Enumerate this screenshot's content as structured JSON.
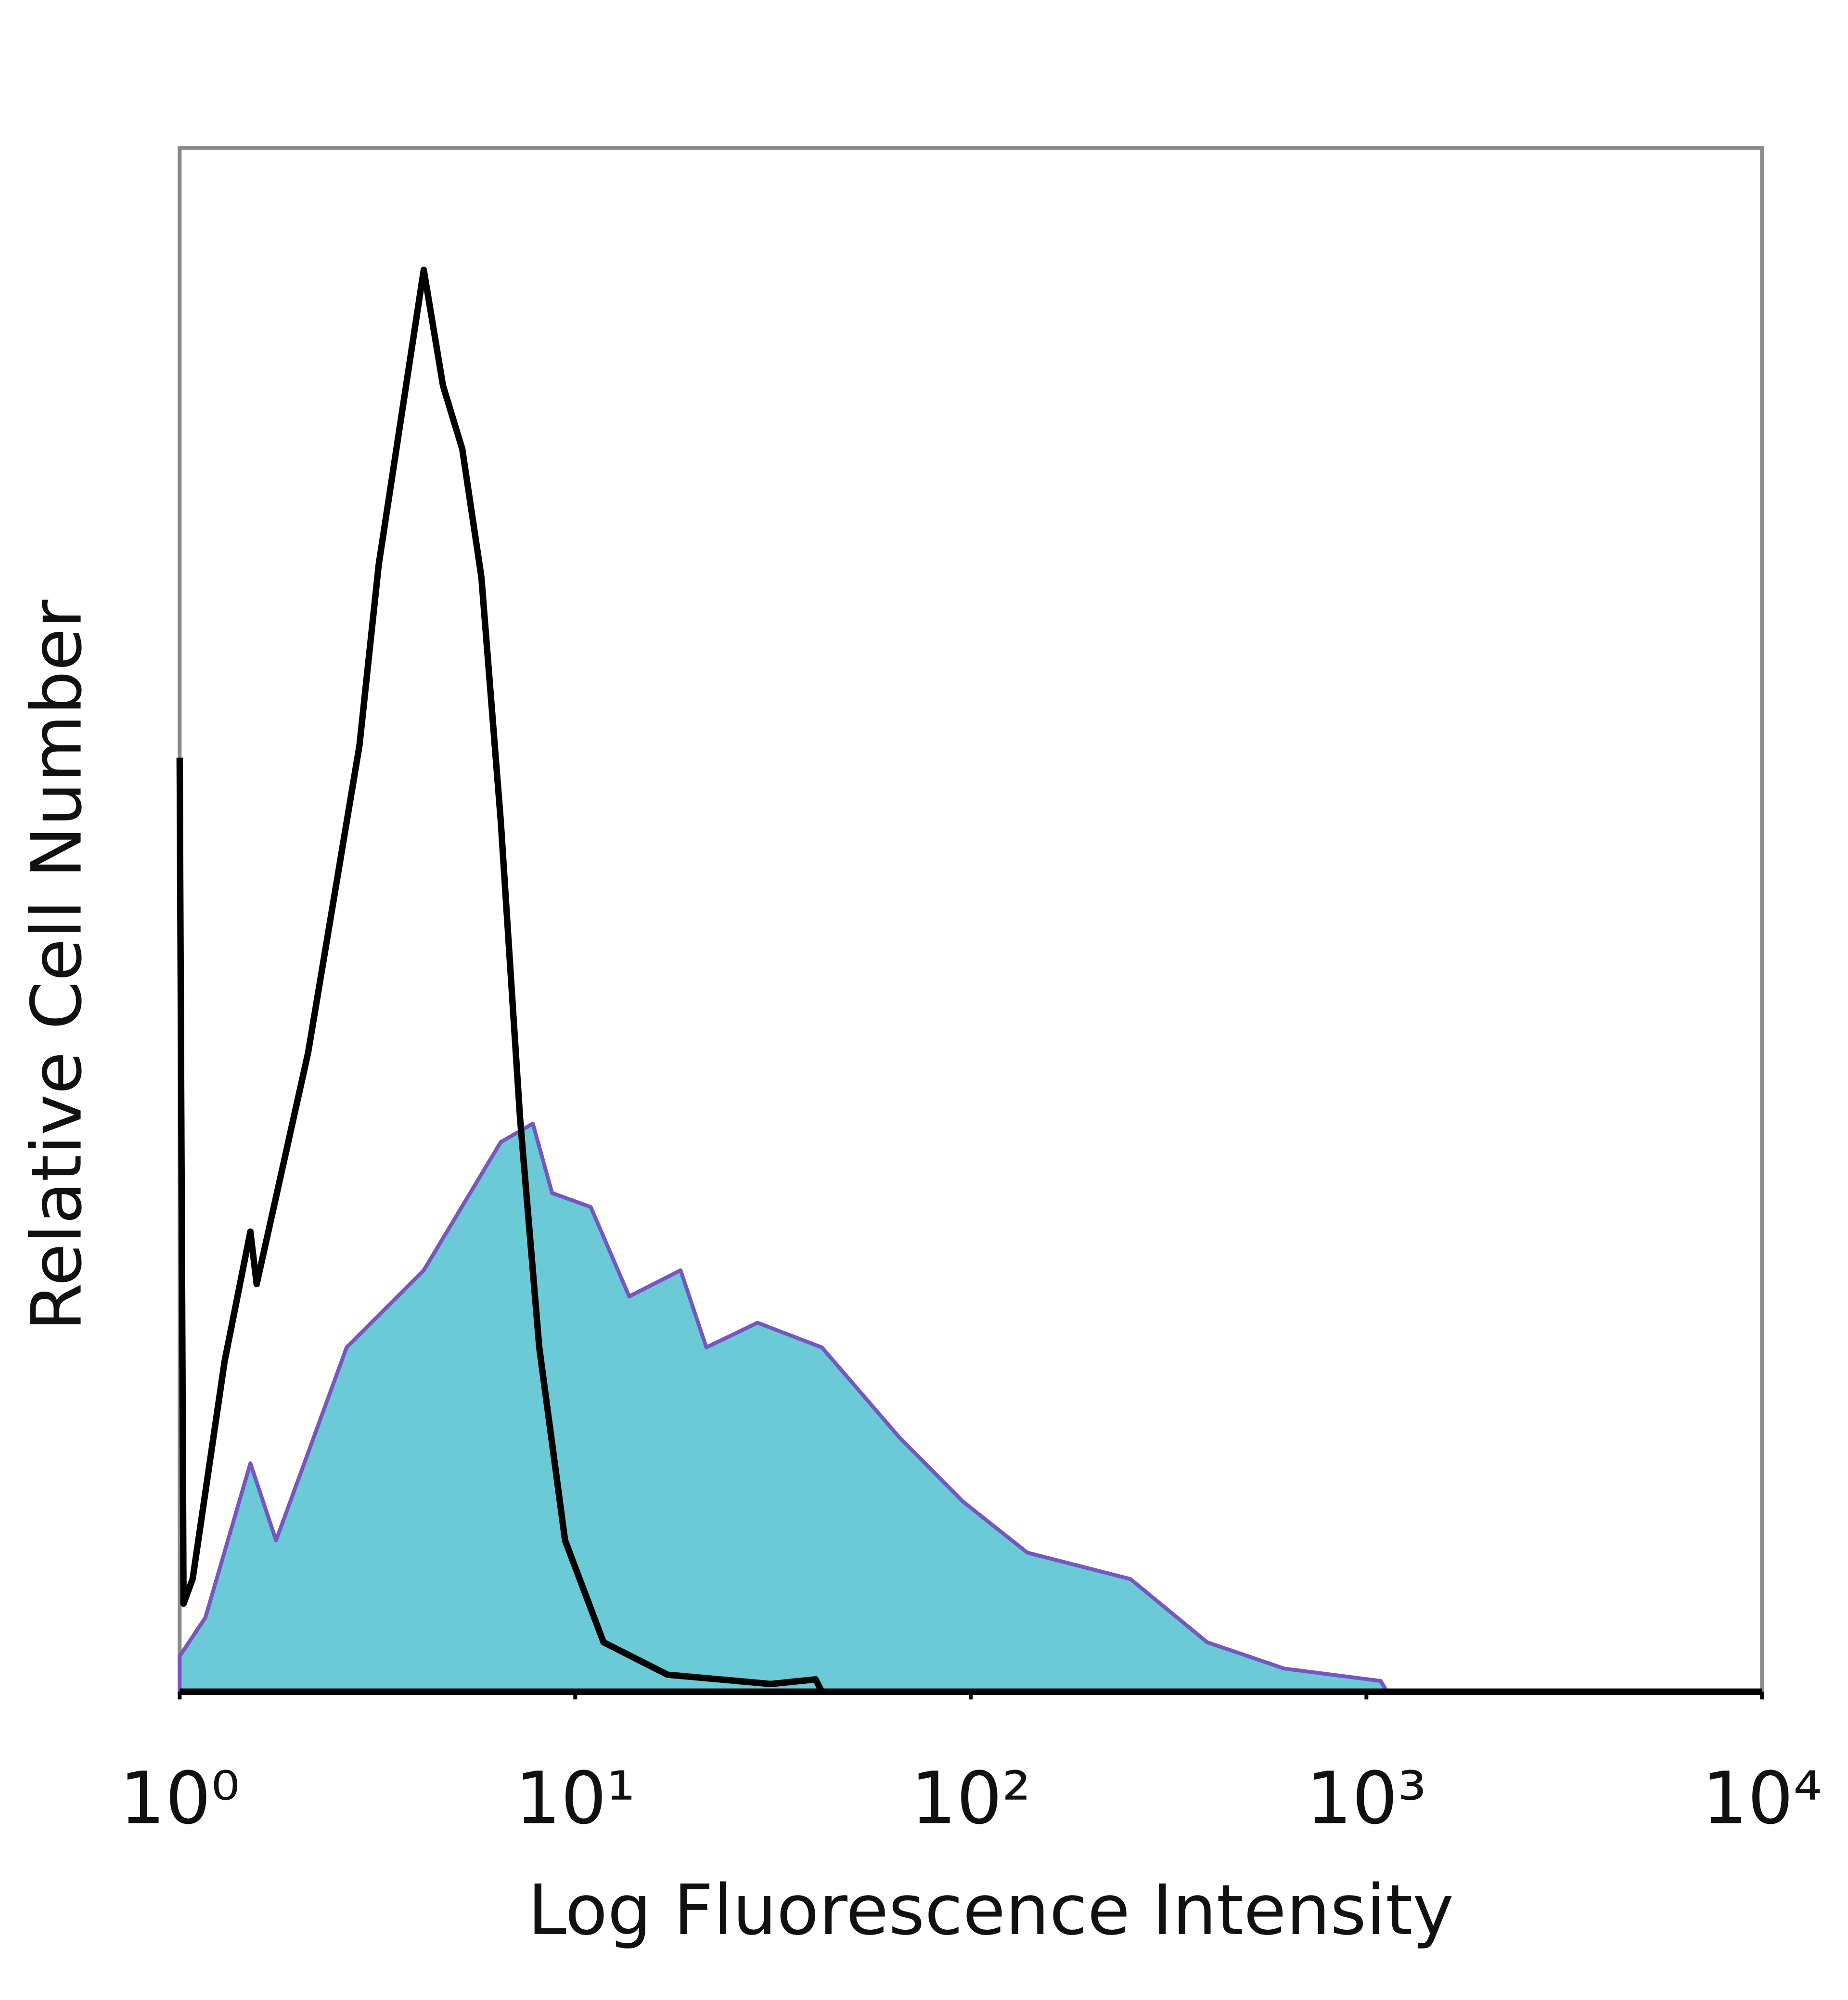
{
  "chart_data": {
    "type": "histogram-overlay",
    "x_label": "Log Fluorescence Intensity",
    "y_label": "Relative Cell Number",
    "xscale": "log",
    "xlim": [
      1,
      10000
    ],
    "xticks": [
      {
        "value": 1,
        "label": "10⁰"
      },
      {
        "value": 10,
        "label": "10¹"
      },
      {
        "value": 100,
        "label": "10²"
      },
      {
        "value": 1000,
        "label": "10³"
      },
      {
        "value": 10000,
        "label": "10⁴"
      }
    ],
    "ylim": [
      0,
      100
    ],
    "series": [
      {
        "color": "#6cc9d6",
        "edge_color": "#7656c0",
        "filled": true,
        "x": [
          1,
          1.161,
          1.509,
          1.752,
          2.643,
          4.14,
          6.48,
          7.81,
          8.74,
          10.94,
          13.69,
          18.46,
          21.44,
          28.9,
          42.0,
          65.8,
          95.6,
          139,
          253,
          396,
          620,
          1086,
          1127
        ],
        "values": [
          2.3,
          4.8,
          14.8,
          9.8,
          22.3,
          27.3,
          35.6,
          36.8,
          32.3,
          31.4,
          25.6,
          27.3,
          22.3,
          23.9,
          22.3,
          16.5,
          12.3,
          9.0,
          7.3,
          3.2,
          1.5,
          0.7,
          0
        ]
      },
      {
        "color": "#000000",
        "filled": false,
        "x": [
          1,
          1.023,
          1.078,
          1.299,
          1.509,
          1.566,
          2.112,
          2.848,
          3.186,
          4.14,
          4.63,
          5.18,
          5.79,
          6.48,
          7.25,
          8.11,
          9.42,
          11.79,
          17.13,
          31.2,
          40.5,
          42.0
        ],
        "values": [
          60.5,
          5.7,
          7.3,
          21.4,
          29.8,
          26.4,
          41.4,
          61.3,
          73.0,
          92.1,
          84.6,
          80.5,
          72.2,
          56.4,
          37.2,
          22.3,
          9.8,
          3.2,
          1.1,
          0.5,
          0.8,
          0
        ]
      }
    ]
  }
}
